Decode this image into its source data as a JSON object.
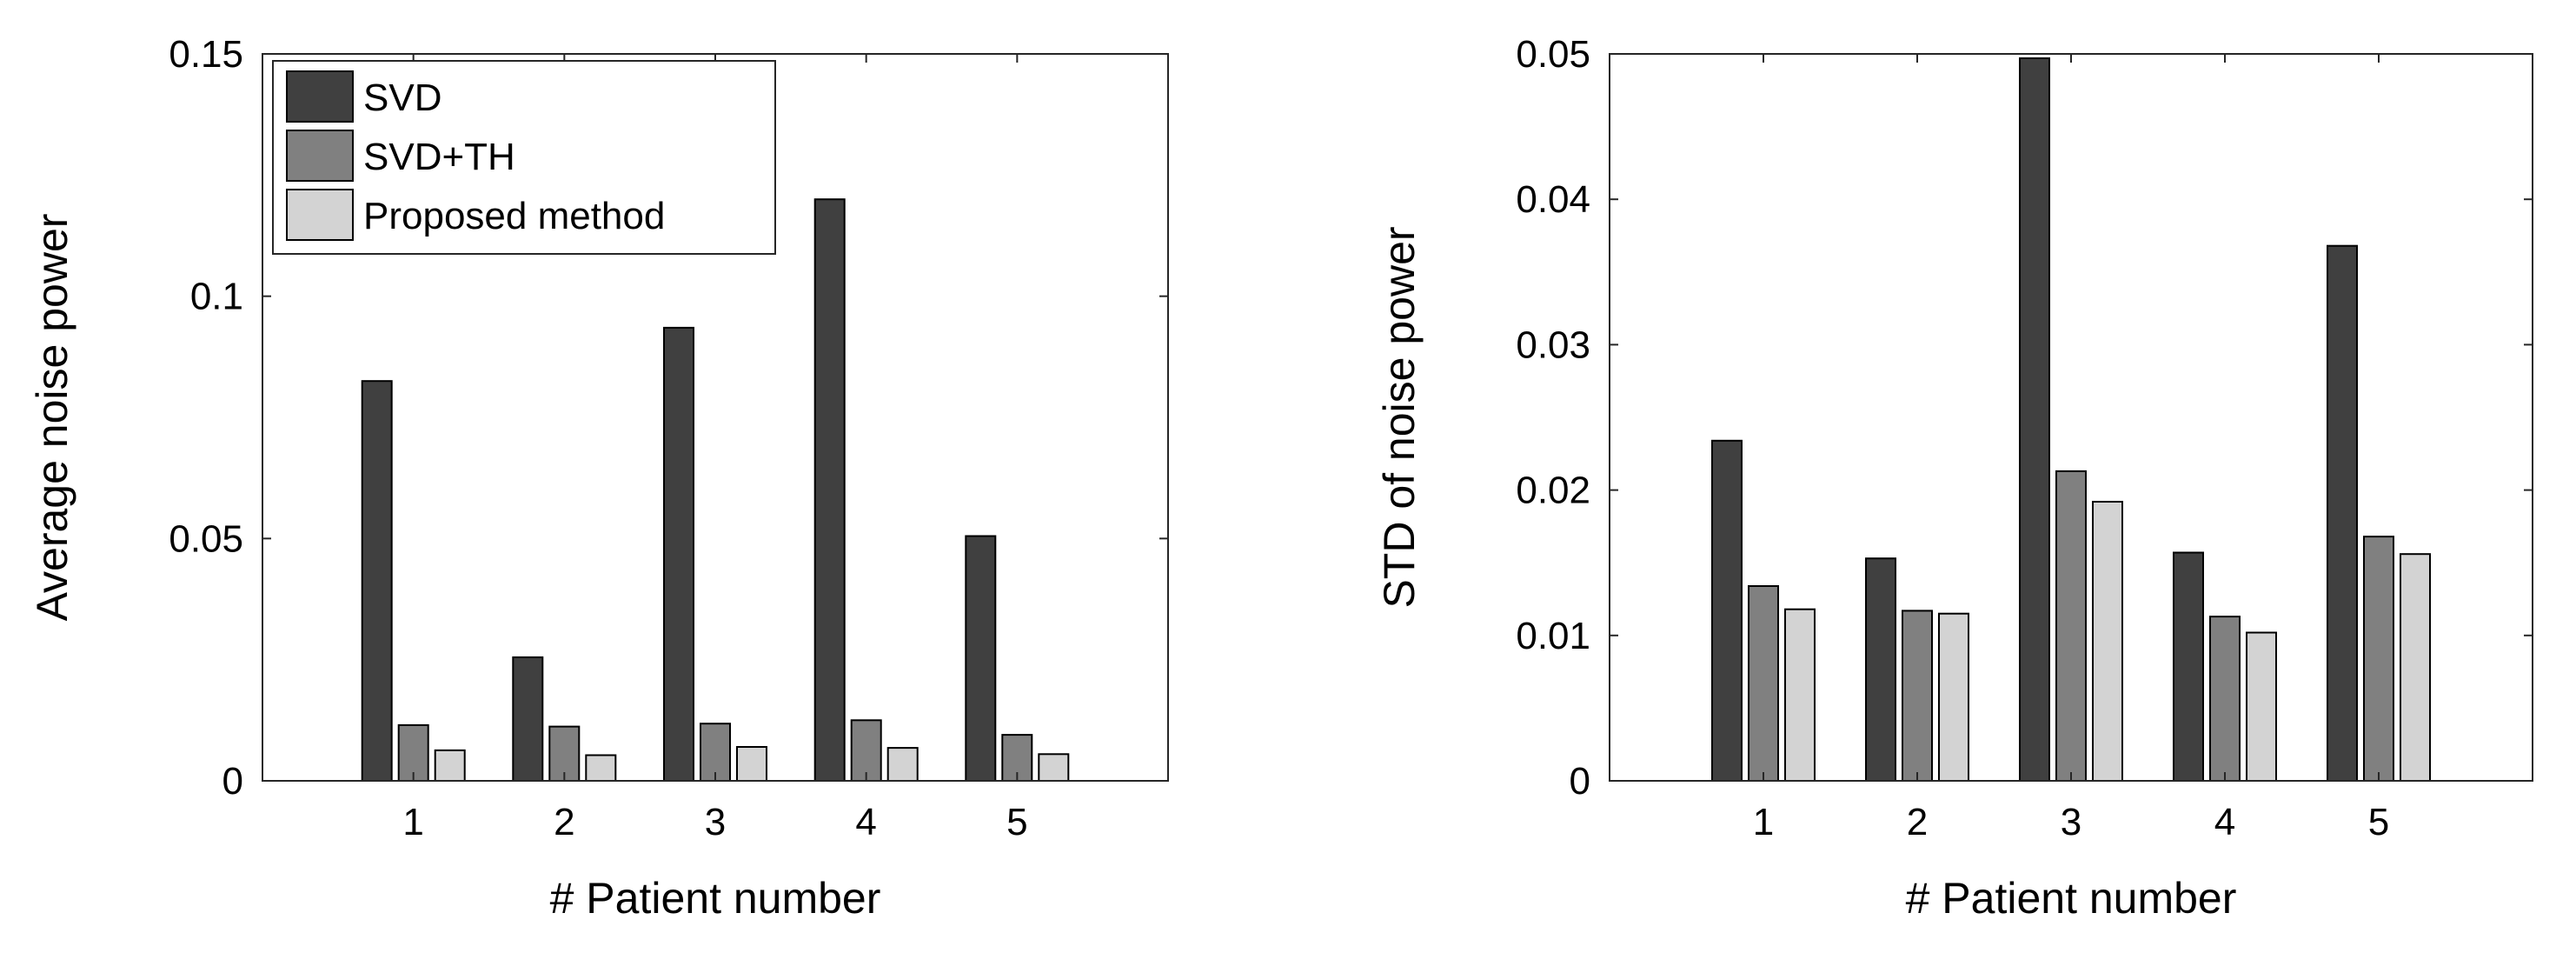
{
  "chart_data": [
    {
      "type": "bar",
      "categories": [
        "1",
        "2",
        "3",
        "4",
        "5"
      ],
      "series": [
        {
          "name": "SVD",
          "values": [
            0.0825,
            0.0255,
            0.0935,
            0.12,
            0.0505
          ]
        },
        {
          "name": "SVD+TH",
          "values": [
            0.0115,
            0.0112,
            0.0118,
            0.0125,
            0.0095
          ]
        },
        {
          "name": "Proposed method",
          "values": [
            0.0063,
            0.0053,
            0.007,
            0.0068,
            0.0055
          ]
        }
      ],
      "xlabel": "# Patient number",
      "ylabel": "Average noise power",
      "ylim": [
        0,
        0.15
      ],
      "yticks": [
        0,
        0.05,
        0.1,
        0.15
      ],
      "ytick_labels": [
        "0",
        "0.05",
        "0.1",
        "0.15"
      ],
      "xlim": [
        0,
        6
      ],
      "grid": false,
      "legend": "top-left",
      "colors": [
        "#404040",
        "#808080",
        "#d3d3d3"
      ]
    },
    {
      "type": "bar",
      "categories": [
        "1",
        "2",
        "3",
        "4",
        "5"
      ],
      "series": [
        {
          "name": "SVD",
          "values": [
            0.0234,
            0.0153,
            0.0497,
            0.0157,
            0.0368
          ]
        },
        {
          "name": "SVD+TH",
          "values": [
            0.0134,
            0.0117,
            0.0213,
            0.0113,
            0.0168
          ]
        },
        {
          "name": "Proposed method",
          "values": [
            0.0118,
            0.0115,
            0.0192,
            0.0102,
            0.0156
          ]
        }
      ],
      "xlabel": "# Patient number",
      "ylabel": "STD of noise power",
      "ylim": [
        0,
        0.05
      ],
      "yticks": [
        0,
        0.01,
        0.02,
        0.03,
        0.04,
        0.05
      ],
      "ytick_labels": [
        "0",
        "0.01",
        "0.02",
        "0.03",
        "0.04",
        "0.05"
      ],
      "xlim": [
        0,
        6
      ],
      "grid": false,
      "colors": [
        "#404040",
        "#808080",
        "#d3d3d3"
      ]
    }
  ]
}
